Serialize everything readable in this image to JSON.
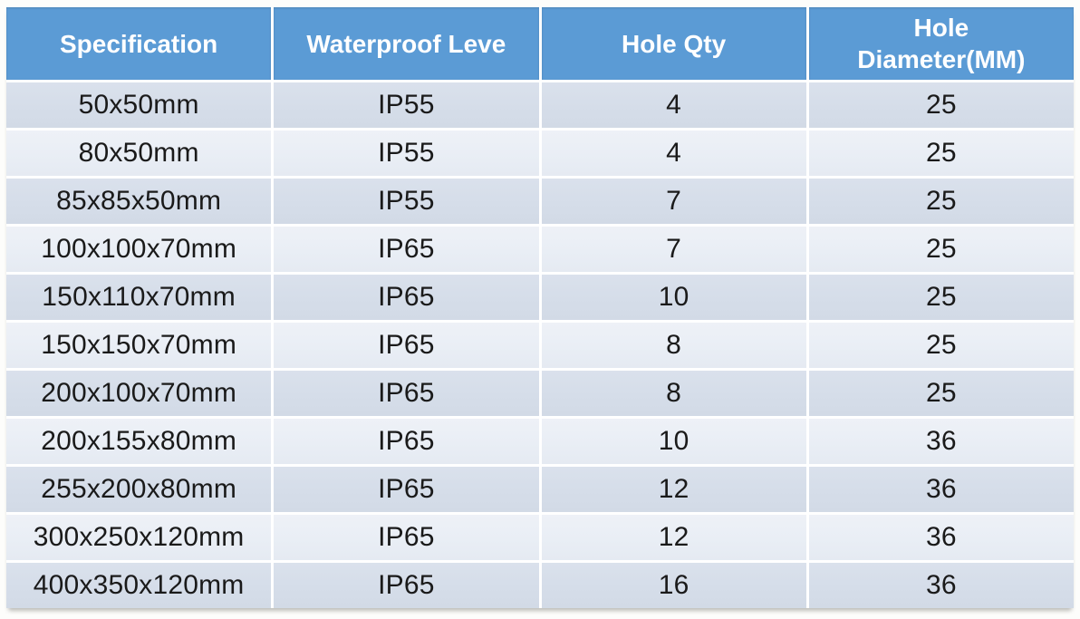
{
  "chart_data": {
    "type": "table",
    "columns": [
      "Specification",
      "Waterproof Leve",
      "Hole Qty",
      "Hole Diameter(MM)"
    ],
    "rows": [
      [
        "50x50mm",
        "IP55",
        "4",
        "25"
      ],
      [
        "80x50mm",
        "IP55",
        "4",
        "25"
      ],
      [
        "85x85x50mm",
        "IP55",
        "7",
        "25"
      ],
      [
        "100x100x70mm",
        "IP65",
        "7",
        "25"
      ],
      [
        "150x110x70mm",
        "IP65",
        "10",
        "25"
      ],
      [
        "150x150x70mm",
        "IP65",
        "8",
        "25"
      ],
      [
        "200x100x70mm",
        "IP65",
        "8",
        "25"
      ],
      [
        "200x155x80mm",
        "IP65",
        "10",
        "36"
      ],
      [
        "255x200x80mm",
        "IP65",
        "12",
        "36"
      ],
      [
        "300x250x120mm",
        "IP65",
        "12",
        "36"
      ],
      [
        "400x350x120mm",
        "IP65",
        "16",
        "36"
      ]
    ],
    "legend": false,
    "grid": "white 3px separators, alternating row shading"
  },
  "colors": {
    "header_bg": "#5b9bd5",
    "header_text": "#ffffff",
    "row_odd_bg": "#d5dde9",
    "row_even_bg": "#e9eef5",
    "cell_text": "#1a1a1a",
    "grid": "#ffffff",
    "page_bg": "#fdfdfb"
  }
}
